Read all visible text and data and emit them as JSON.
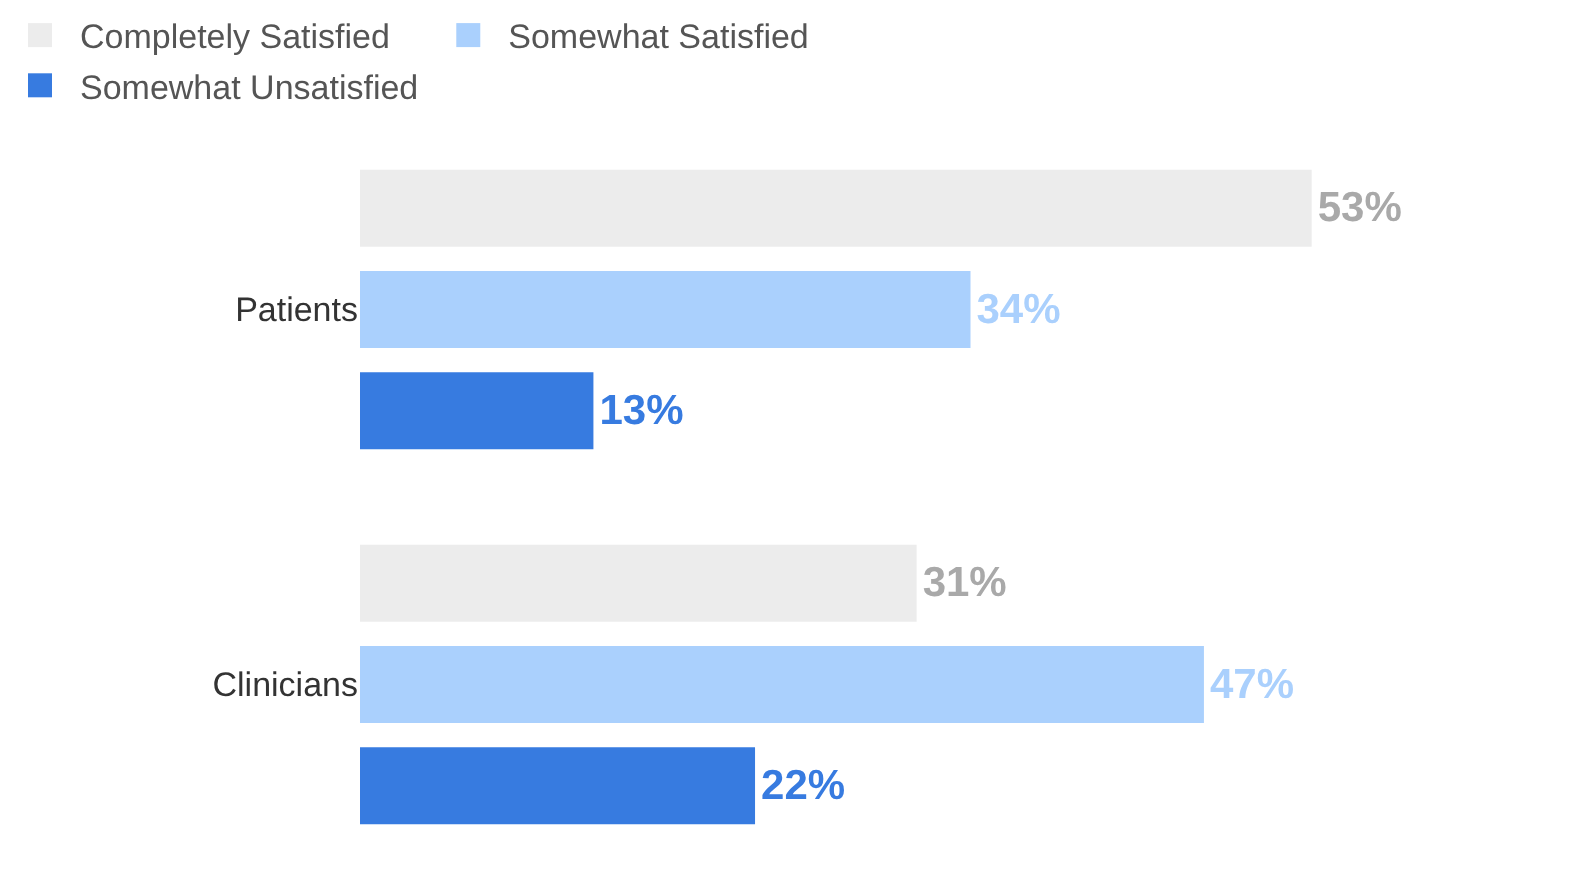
{
  "chart_data": {
    "type": "bar",
    "orientation": "horizontal",
    "categories": [
      "Patients",
      "Clinicians"
    ],
    "series": [
      {
        "name": "Completely Satisfied",
        "color": "#ececec",
        "values": [
          53,
          31
        ],
        "value_labels": [
          "53%",
          "31%"
        ]
      },
      {
        "name": "Somewhat Satisfied",
        "color": "#aad0fd",
        "values": [
          34,
          47
        ],
        "value_labels": [
          "34%",
          "47%"
        ]
      },
      {
        "name": "Somewhat Unsatisfied",
        "color": "#377be0",
        "values": [
          13,
          22
        ],
        "value_labels": [
          "13%",
          "22%"
        ]
      }
    ],
    "legend": "top",
    "tick_labels": "y"
  }
}
